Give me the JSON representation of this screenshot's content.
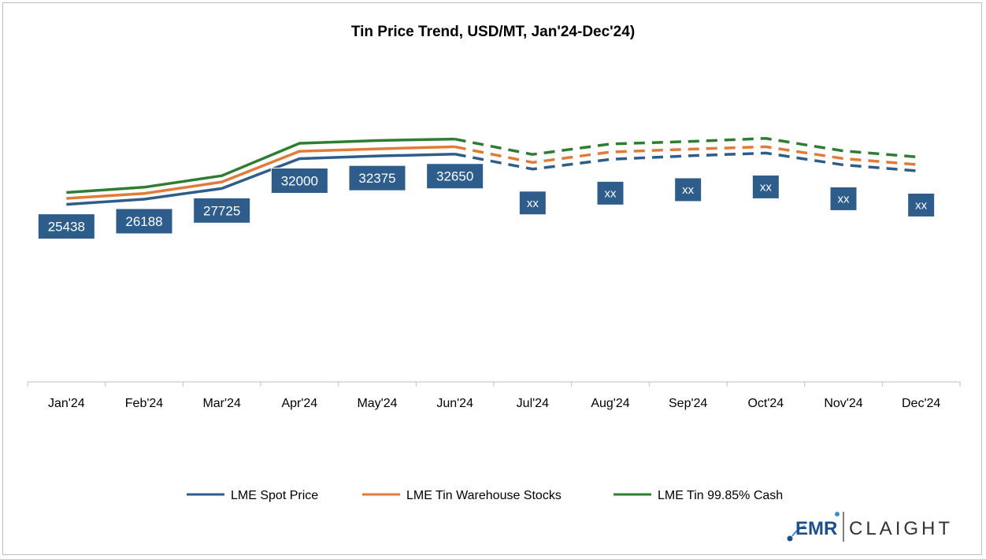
{
  "chart_data": {
    "type": "line",
    "title": "Tin Price Trend, USD/MT, Jan'24-Dec'24)",
    "categories": [
      "Jan'24",
      "Feb'24",
      "Mar'24",
      "Apr'24",
      "May'24",
      "Jun'24",
      "Jul'24",
      "Aug'24",
      "Sep'24",
      "Oct'24",
      "Nov'24",
      "Dec'24"
    ],
    "actual_through_index": 5,
    "ylim": [
      0,
      50000
    ],
    "xlabel": "",
    "ylabel": "",
    "grid": false,
    "legend_position": "bottom",
    "series": [
      {
        "name": "LME Spot Price",
        "color": "#2e5d8c",
        "values": [
          25438,
          26188,
          27725,
          32000,
          32375,
          32650,
          30500,
          31900,
          32400,
          32800,
          31100,
          30200
        ],
        "labels": [
          "25438",
          "26188",
          "27725",
          "32000",
          "32375",
          "32650",
          "xx",
          "xx",
          "xx",
          "xx",
          "xx",
          "xx"
        ]
      },
      {
        "name": "LME Tin Warehouse Stocks",
        "color": "#e07b39",
        "values": [
          26300,
          27000,
          28650,
          33050,
          33400,
          33700,
          31450,
          32950,
          33350,
          33700,
          32000,
          31100
        ],
        "labels": []
      },
      {
        "name": "LME Tin 99.85% Cash",
        "color": "#2e7d32",
        "values": [
          27150,
          27900,
          29550,
          34200,
          34600,
          34800,
          32600,
          34100,
          34450,
          34900,
          33100,
          32200
        ],
        "labels": []
      }
    ],
    "label_color": "#2e5d8c"
  },
  "logo": {
    "left_text": "EMR",
    "right_text": "CLAIGHT"
  }
}
